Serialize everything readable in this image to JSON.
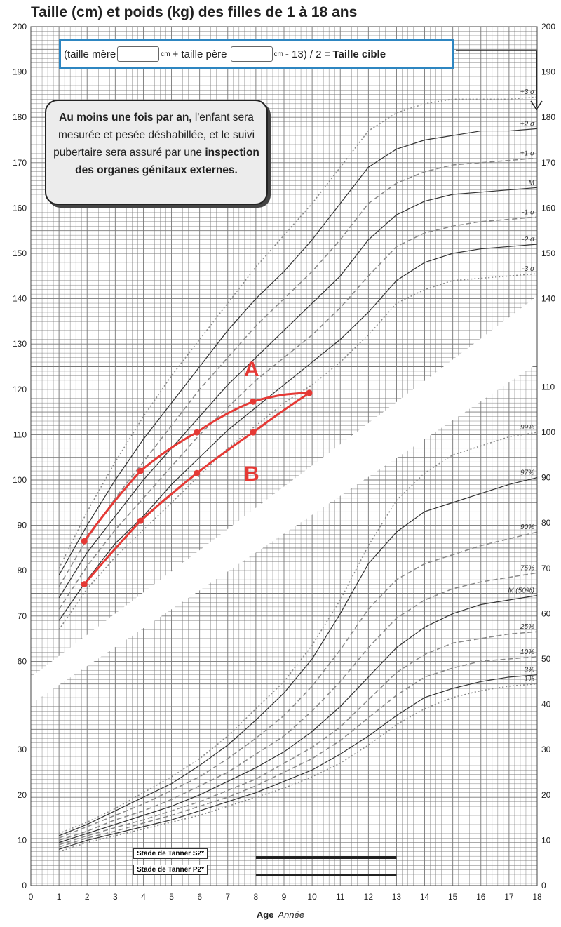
{
  "header": {
    "title": "Taille (cm) et poids (kg) des filles de 1 à 18 ans"
  },
  "formula": {
    "part1": "(taille mère",
    "unit": "cm",
    "part2": "+ taille père",
    "part3": "- 13) / 2 =",
    "result": "Taille cible"
  },
  "note": {
    "bold1": "Au moins une fois par an,",
    "text1": "l'enfant sera mesurée et pesée déshabillée, et le suivi pubertaire sera assuré par une",
    "bold2": "inspection des organes génitaux externes."
  },
  "axis": {
    "x_label_bold": "Age",
    "x_label_italic": "Année",
    "x_ticks": [
      "0",
      "1",
      "2",
      "3",
      "4",
      "5",
      "6",
      "7",
      "8",
      "9",
      "10",
      "11",
      "12",
      "13",
      "14",
      "15",
      "16",
      "17",
      "18"
    ]
  },
  "tanner": {
    "s2": "Stade de Tanner S2*",
    "p2": "Stade de Tanner P2*"
  },
  "chart_data": [
    {
      "type": "line",
      "title": "Taille (cm)",
      "xlim": [
        0,
        18
      ],
      "ylim": [
        55,
        200
      ],
      "y_ticks_left": [
        "60",
        "70",
        "80",
        "90",
        "100",
        "110",
        "120",
        "130",
        "140",
        "150",
        "160",
        "170",
        "180",
        "190",
        "200"
      ],
      "y_ticks_right": [
        "140",
        "150",
        "160",
        "170",
        "180",
        "190",
        "200"
      ],
      "curve_x": [
        1,
        2,
        3,
        4,
        5,
        6,
        7,
        8,
        9,
        10,
        11,
        12,
        13,
        14,
        15,
        16,
        17,
        18
      ],
      "reference": [
        {
          "name": "+3 σ",
          "style": "dotted",
          "values": [
            80.5,
            93,
            104,
            114,
            123,
            131,
            139,
            147,
            154,
            161,
            169,
            177,
            181,
            183,
            184,
            184,
            184,
            184.5
          ]
        },
        {
          "name": "+2 σ",
          "style": "solid",
          "values": [
            79,
            90,
            100,
            109,
            117,
            125,
            133,
            140,
            146,
            153,
            161,
            169,
            173,
            175,
            176,
            177,
            177,
            177.5
          ]
        },
        {
          "name": "+1 σ",
          "style": "dashed",
          "values": [
            76.5,
            87,
            96,
            104,
            112,
            120,
            127,
            134,
            140,
            146,
            153,
            161,
            165.5,
            168,
            169.5,
            170,
            170.5,
            171
          ]
        },
        {
          "name": "M",
          "style": "solid",
          "values": [
            74,
            84,
            92,
            100,
            107,
            114,
            121,
            127,
            133,
            139,
            145,
            153,
            158.5,
            161.5,
            163,
            163.5,
            164,
            164.5
          ]
        },
        {
          "name": "-1 σ",
          "style": "dashed",
          "values": [
            71.5,
            81,
            89,
            96,
            103,
            110,
            116,
            122,
            127,
            132,
            138,
            145,
            151.5,
            154.5,
            156,
            157,
            157.5,
            158
          ]
        },
        {
          "name": "-2 σ",
          "style": "solid",
          "values": [
            69,
            78,
            86,
            92,
            99,
            105,
            111,
            116,
            121,
            126,
            131,
            137,
            144,
            148,
            150,
            151,
            151.5,
            152
          ]
        },
        {
          "name": "-3 σ",
          "style": "dotted",
          "values": [
            67,
            76,
            83,
            89,
            95,
            101,
            107,
            112,
            117,
            121,
            126,
            132,
            139,
            142,
            144,
            144.5,
            145,
            145.5
          ]
        }
      ],
      "patients": [
        {
          "name": "A",
          "x": [
            1.9,
            3.9,
            5.9,
            7.9,
            9.9
          ],
          "values": [
            86.5,
            102,
            110.5,
            117.3,
            119.2
          ]
        },
        {
          "name": "B",
          "x": [
            1.9,
            3.9,
            5.9,
            7.9,
            9.9
          ],
          "values": [
            77,
            91,
            101.5,
            110.5,
            119.2
          ]
        }
      ],
      "colors": {
        "patient": "#e53935",
        "grid": "#555555"
      }
    },
    {
      "type": "line",
      "title": "Poids (kg)",
      "xlim": [
        0,
        18
      ],
      "ylim": [
        0,
        125
      ],
      "y_ticks_left": [
        "0",
        "10",
        "20",
        "30"
      ],
      "y_ticks_right": [
        "0",
        "10",
        "20",
        "30",
        "40",
        "50",
        "60",
        "70",
        "80",
        "90",
        "100",
        "110"
      ],
      "curve_x": [
        1,
        2,
        3,
        4,
        5,
        6,
        7,
        8,
        9,
        10,
        11,
        12,
        13,
        14,
        15,
        16,
        17,
        18
      ],
      "reference": [
        {
          "name": "99%",
          "style": "dotted",
          "values": [
            11.5,
            14,
            17,
            20.5,
            24,
            28,
            33,
            39,
            45,
            53,
            63,
            75,
            85,
            91,
            95,
            97,
            99,
            100
          ]
        },
        {
          "name": "97%",
          "style": "solid",
          "values": [
            11,
            13.5,
            16.5,
            19.5,
            22.5,
            26.5,
            31,
            36.5,
            42.5,
            50,
            60,
            71,
            78,
            82.5,
            84.5,
            86.5,
            88.5,
            90
          ]
        },
        {
          "name": "90%",
          "style": "dashed",
          "values": [
            10.5,
            13,
            15.5,
            18,
            21,
            24,
            28,
            32.5,
            37.5,
            44,
            52,
            61,
            67.5,
            71,
            73,
            75,
            76.5,
            78
          ]
        },
        {
          "name": "75%",
          "style": "dashed",
          "values": [
            10,
            12,
            14.5,
            16.5,
            19,
            22,
            25,
            29,
            33,
            38.5,
            45,
            52.5,
            59,
            63,
            65.5,
            67,
            68,
            69
          ]
        },
        {
          "name": "M (50%)",
          "style": "solid",
          "values": [
            9.5,
            11.5,
            13.5,
            15.5,
            17.5,
            20,
            23,
            26,
            29.5,
            34,
            39.5,
            46,
            52.5,
            57,
            60,
            62,
            63,
            64
          ]
        },
        {
          "name": "25%",
          "style": "dashed",
          "values": [
            9,
            11,
            12.8,
            14.5,
            16.5,
            18.5,
            21,
            23.5,
            27,
            30.5,
            35,
            41,
            47,
            51,
            53.5,
            54.5,
            55.5,
            56
          ]
        },
        {
          "name": "10%",
          "style": "dashed",
          "values": [
            8.5,
            10.5,
            12,
            13.8,
            15.5,
            17.5,
            19.5,
            22,
            25,
            28,
            32,
            37,
            42,
            46,
            48,
            49.5,
            50,
            50.5
          ]
        },
        {
          "name": "3%",
          "style": "solid",
          "values": [
            8,
            10,
            11.5,
            13,
            14.5,
            16.5,
            18.5,
            20.5,
            23,
            25.5,
            29,
            33,
            37.5,
            41.5,
            43.5,
            45,
            46,
            46.5
          ]
        },
        {
          "name": "1%",
          "style": "dotted",
          "values": [
            7.5,
            9.5,
            11,
            12.5,
            14,
            15.5,
            17.5,
            19.5,
            21.5,
            24,
            27,
            31,
            35.5,
            39,
            41.5,
            43,
            44,
            44.5
          ]
        }
      ],
      "tanner_range": {
        "x": [
          8,
          13
        ]
      },
      "colors": {
        "grid": "#555555"
      }
    }
  ]
}
